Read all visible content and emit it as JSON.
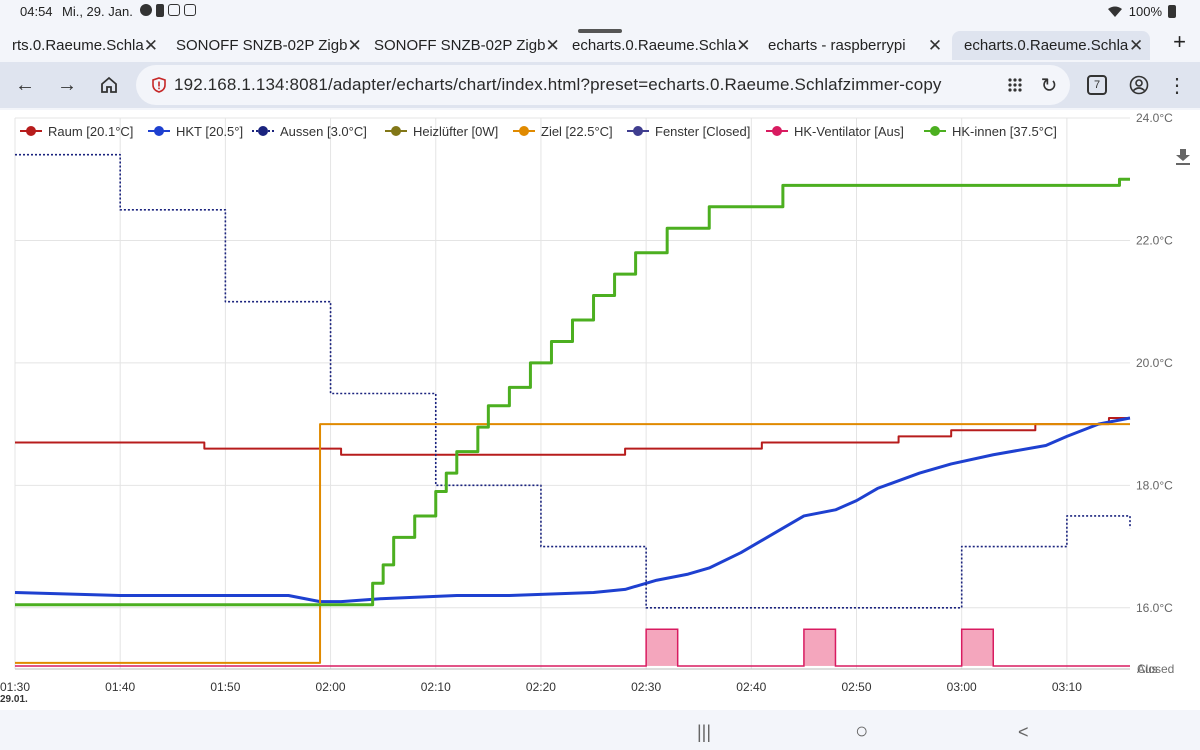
{
  "status": {
    "time": "04:54",
    "date": "Mi., 29. Jan.",
    "battery": "100%"
  },
  "tabs": [
    {
      "label": "rts.0.Raeume.Schla",
      "active": false
    },
    {
      "label": "SONOFF SNZB-02P Zigb",
      "active": false
    },
    {
      "label": "SONOFF SNZB-02P Zigb",
      "active": false
    },
    {
      "label": "echarts.0.Raeume.Schla",
      "active": false
    },
    {
      "label": "echarts - raspberrypi",
      "active": false
    },
    {
      "label": "echarts.0.Raeume.Schla",
      "active": true
    }
  ],
  "toolbar": {
    "url": "192.168.1.134:8081/adapter/echarts/chart/index.html?preset=echarts.0.Raeume.Schlafzimmer-copy",
    "tab_count": "7"
  },
  "colors": {
    "accent": "#1a73e8",
    "security": "#c62828"
  },
  "chart_data": {
    "type": "line",
    "x_ticks": [
      "01:30",
      "01:40",
      "01:50",
      "02:00",
      "02:10",
      "02:20",
      "02:30",
      "02:40",
      "02:50",
      "03:00",
      "03:10"
    ],
    "x_date_label": "29.01.",
    "xlim": [
      "01:30",
      "03:16"
    ],
    "y_ticks": [
      "24.0°C",
      "22.0°C",
      "20.0°C",
      "18.0°C",
      "16.0°C"
    ],
    "ylim": [
      15.0,
      24.0
    ],
    "bool_labels": [
      "Aus",
      "Closed"
    ],
    "legend_position": "top",
    "grid": true,
    "series": [
      {
        "name": "Raum [20.1°C]",
        "color": "#b71c1c",
        "style": "step-solid",
        "points": [
          [
            "01:30",
            18.7
          ],
          [
            "01:48",
            18.6
          ],
          [
            "01:58",
            18.6
          ],
          [
            "02:01",
            18.5
          ],
          [
            "02:28",
            18.6
          ],
          [
            "02:41",
            18.7
          ],
          [
            "02:54",
            18.8
          ],
          [
            "02:59",
            18.9
          ],
          [
            "03:07",
            19.0
          ],
          [
            "03:14",
            19.1
          ],
          [
            "03:16",
            19.1
          ]
        ]
      },
      {
        "name": "HKT [20.5°]",
        "color": "#1e40d0",
        "style": "smooth",
        "points": [
          [
            "01:30",
            16.25
          ],
          [
            "01:40",
            16.2
          ],
          [
            "01:50",
            16.2
          ],
          [
            "01:56",
            16.2
          ],
          [
            "01:59",
            16.1
          ],
          [
            "02:01",
            16.1
          ],
          [
            "02:05",
            16.15
          ],
          [
            "02:12",
            16.2
          ],
          [
            "02:17",
            16.2
          ],
          [
            "02:25",
            16.25
          ],
          [
            "02:28",
            16.3
          ],
          [
            "02:31",
            16.45
          ],
          [
            "02:34",
            16.55
          ],
          [
            "02:36",
            16.65
          ],
          [
            "02:39",
            16.9
          ],
          [
            "02:42",
            17.2
          ],
          [
            "02:45",
            17.5
          ],
          [
            "02:48",
            17.6
          ],
          [
            "02:50",
            17.75
          ],
          [
            "02:52",
            17.95
          ],
          [
            "02:56",
            18.2
          ],
          [
            "02:59",
            18.35
          ],
          [
            "03:03",
            18.5
          ],
          [
            "03:08",
            18.65
          ],
          [
            "03:10",
            18.8
          ],
          [
            "03:13",
            19.0
          ],
          [
            "03:16",
            19.1
          ]
        ]
      },
      {
        "name": "Aussen [3.0°C]",
        "color": "#1a237e",
        "style": "step-dotted",
        "points": [
          [
            "01:30",
            23.4
          ],
          [
            "01:40",
            22.5
          ],
          [
            "01:50",
            21.0
          ],
          [
            "02:00",
            19.5
          ],
          [
            "02:10",
            18.0
          ],
          [
            "02:20",
            17.0
          ],
          [
            "02:30",
            16.0
          ],
          [
            "02:40",
            16.0
          ],
          [
            "02:50",
            16.0
          ],
          [
            "03:00",
            17.0
          ],
          [
            "03:10",
            17.5
          ],
          [
            "03:16",
            17.3
          ]
        ]
      },
      {
        "name": "Heizlüfter  [0W]",
        "color": "#827717",
        "style": "solid",
        "points": []
      },
      {
        "name": "Ziel [22.5°C]",
        "color": "#e08a00",
        "style": "solid",
        "points": [
          [
            "01:30",
            15.1
          ],
          [
            "01:59",
            15.1
          ],
          [
            "01:59",
            19.0
          ],
          [
            "03:16",
            19.0
          ]
        ]
      },
      {
        "name": "Fenster  [Closed]",
        "color": "#3f3d8f",
        "style": "solid",
        "points": []
      },
      {
        "name": "HK-Ventilator  [Aus]",
        "color": "#d81b60",
        "style": "bool-area",
        "on_value": 15.65,
        "off_value": 15.05,
        "on_intervals": [
          [
            "02:30",
            "02:33"
          ],
          [
            "02:45",
            "02:48"
          ],
          [
            "03:00",
            "03:03"
          ]
        ]
      },
      {
        "name": "HK-innen [37.5°C]",
        "color": "#4caf20",
        "style": "step-solid",
        "points": [
          [
            "01:30",
            16.05
          ],
          [
            "01:43",
            16.05
          ],
          [
            "02:01",
            16.05
          ],
          [
            "02:04",
            16.4
          ],
          [
            "02:05",
            16.7
          ],
          [
            "02:06",
            17.15
          ],
          [
            "02:08",
            17.5
          ],
          [
            "02:10",
            17.9
          ],
          [
            "02:11",
            18.2
          ],
          [
            "02:12",
            18.55
          ],
          [
            "02:14",
            18.95
          ],
          [
            "02:15",
            19.3
          ],
          [
            "02:17",
            19.6
          ],
          [
            "02:19",
            20.0
          ],
          [
            "02:21",
            20.35
          ],
          [
            "02:23",
            20.7
          ],
          [
            "02:25",
            21.1
          ],
          [
            "02:27",
            21.45
          ],
          [
            "02:29",
            21.8
          ],
          [
            "02:32",
            22.2
          ],
          [
            "02:36",
            22.55
          ],
          [
            "02:43",
            22.9
          ],
          [
            "03:15",
            23.0
          ],
          [
            "03:16",
            23.0
          ]
        ]
      }
    ]
  },
  "nav": {
    "recents": "|||",
    "home": "○",
    "back": "<"
  }
}
